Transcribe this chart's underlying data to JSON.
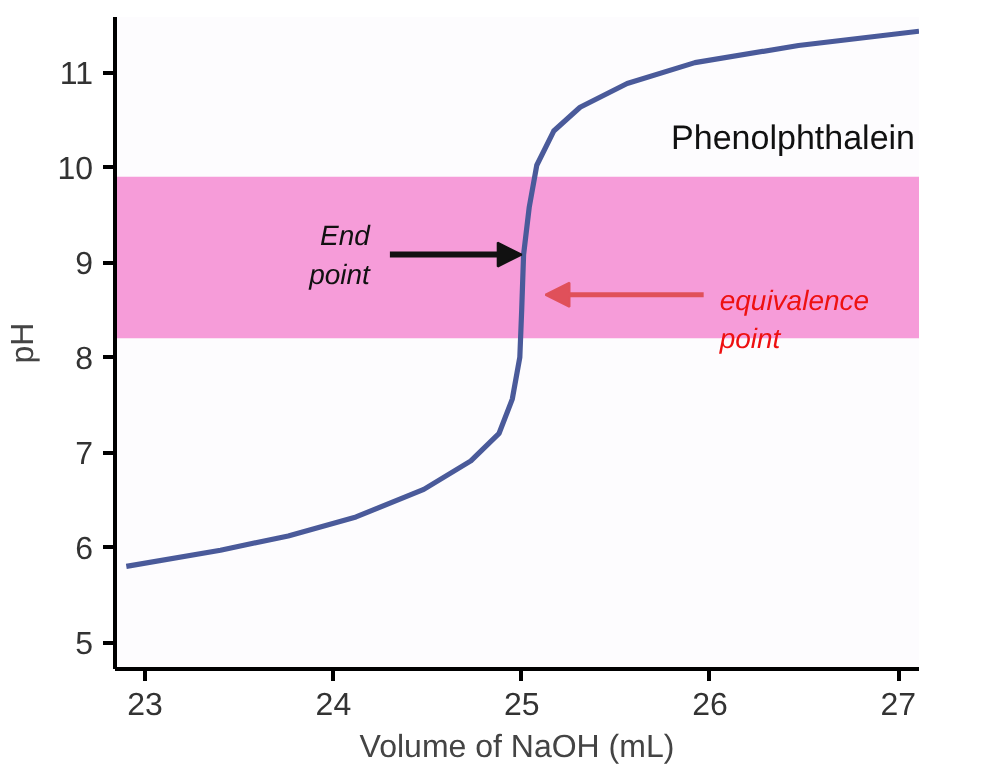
{
  "chart_data": {
    "type": "line",
    "xlabel": "Volume of NaOH (mL)",
    "ylabel": "pH",
    "x": [
      22.9,
      23.4,
      23.76,
      24.12,
      24.48,
      24.73,
      24.88,
      24.95,
      24.99,
      25.0,
      25.01,
      25.04,
      25.08,
      25.17,
      25.31,
      25.56,
      25.92,
      26.47,
      27.11
    ],
    "series": [
      {
        "color": "#4a5a9a",
        "values": [
          5.8,
          5.97,
          6.12,
          6.32,
          6.61,
          6.91,
          7.2,
          7.56,
          8.0,
          8.5,
          9.08,
          9.58,
          10.02,
          10.38,
          10.63,
          10.88,
          11.1,
          11.28,
          11.43
        ]
      }
    ],
    "xlim": [
      22.84,
      27.11
    ],
    "ylim": [
      4.72,
      11.58
    ],
    "xticks": [
      23,
      24,
      25,
      26,
      27
    ],
    "yticks": [
      5,
      6,
      7,
      8,
      9,
      10,
      11
    ],
    "bands": [
      {
        "axis": "y",
        "from": 8.2,
        "to": 9.9,
        "label": "Phenolphthalein",
        "color": "#f03cb4"
      }
    ],
    "annotations": [
      {
        "text": "End point",
        "x": 25.0,
        "y": 9.08
      },
      "equivalence point"
    ],
    "grid": false,
    "line_style": "solid",
    "marker": "none"
  }
}
